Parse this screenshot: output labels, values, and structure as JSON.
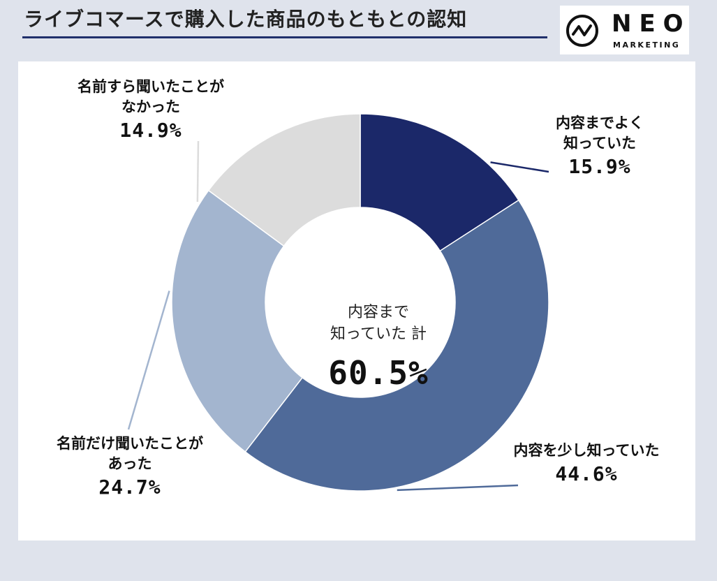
{
  "title": "ライブコマースで購入した商品のもともとの認知",
  "logo": {
    "name": "NEO",
    "sub": "MARKETING"
  },
  "chart_data": {
    "type": "pie",
    "title": "ライブコマースで購入した商品のもともとの認知",
    "series": [
      {
        "name": "内容までよく知っていた",
        "name_lines": [
          "内容までよく",
          "知っていた"
        ],
        "value": 15.9,
        "label": "15.9%",
        "color": "#1b2869"
      },
      {
        "name": "内容を少し知っていた",
        "name_lines": [
          "内容を少し知っていた"
        ],
        "value": 44.6,
        "label": "44.6%",
        "color": "#4f6a99"
      },
      {
        "name": "名前だけ聞いたことがあった",
        "name_lines": [
          "名前だけ聞いたことが",
          "あった"
        ],
        "value": 24.7,
        "label": "24.7%",
        "color": "#a3b5cf"
      },
      {
        "name": "名前すら聞いたことがなかった",
        "name_lines": [
          "名前すら聞いたことが",
          "なかった"
        ],
        "value": 14.9,
        "label": "14.9%",
        "color": "#dcdcdc"
      }
    ],
    "center": {
      "lines": [
        "内容まで",
        "知っていた 計"
      ],
      "total": "60.5%"
    }
  }
}
